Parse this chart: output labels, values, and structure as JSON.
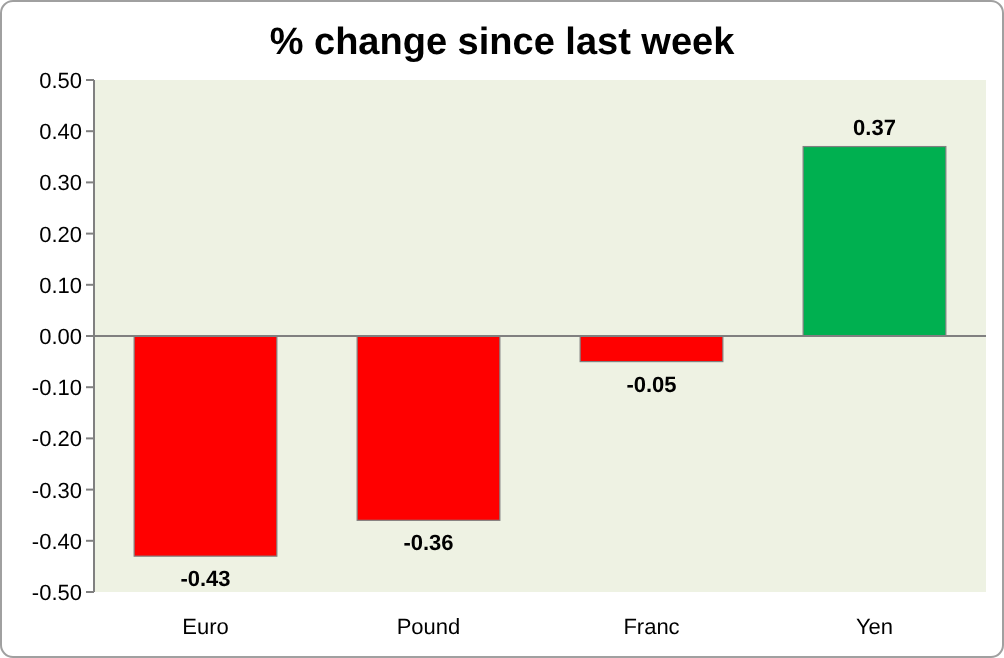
{
  "chart_data": {
    "type": "bar",
    "title": "% change since last week",
    "categories": [
      "Euro",
      "Pound",
      "Franc",
      "Yen"
    ],
    "values": [
      -0.43,
      -0.36,
      -0.05,
      0.37
    ],
    "colors": [
      "#ff0000",
      "#ff0000",
      "#ff0000",
      "#00b050"
    ],
    "ylim": [
      -0.5,
      0.5
    ],
    "yticks": [
      {
        "value": -0.5,
        "label": "-0.50"
      },
      {
        "value": -0.4,
        "label": "-0.40"
      },
      {
        "value": -0.3,
        "label": "-0.30"
      },
      {
        "value": -0.2,
        "label": "-0.20"
      },
      {
        "value": -0.1,
        "label": "-0.10"
      },
      {
        "value": 0,
        "label": "0.00"
      },
      {
        "value": 0.1,
        "label": "0.10"
      },
      {
        "value": 0.2,
        "label": "0.20"
      },
      {
        "value": 0.3,
        "label": "0.30"
      },
      {
        "value": 0.4,
        "label": "0.40"
      },
      {
        "value": 0.5,
        "label": "0.50"
      }
    ],
    "data_labels": true
  }
}
